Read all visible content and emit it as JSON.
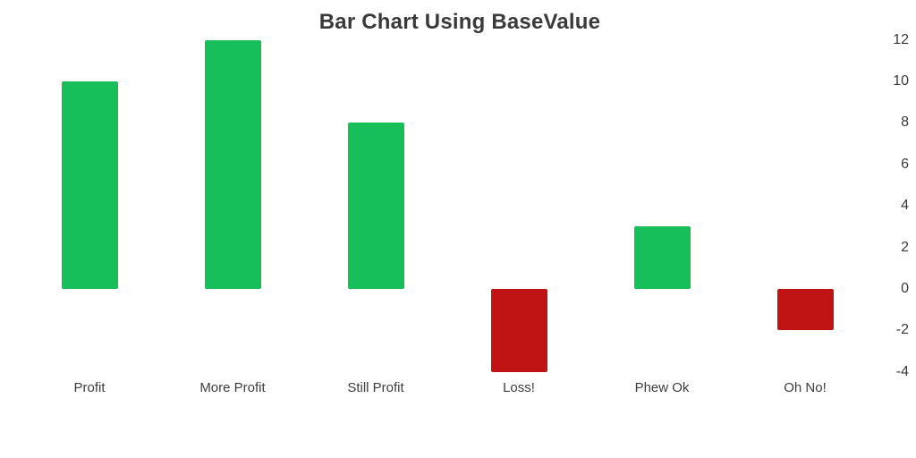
{
  "chart_data": {
    "type": "bar",
    "title": "Bar Chart Using BaseValue",
    "categories": [
      "Profit",
      "More Profit",
      "Still Profit",
      "Loss!",
      "Phew Ok",
      "Oh No!"
    ],
    "values": [
      10,
      12,
      8,
      -4,
      3,
      -2
    ],
    "base_value": 0,
    "xlabel": "",
    "ylabel": "",
    "ylim": [
      -4,
      12
    ],
    "y_ticks": [
      12,
      10,
      8,
      6,
      4,
      2,
      0,
      -2,
      -4
    ],
    "y_axis_side": "right",
    "grid": false,
    "legend": "none",
    "colors": {
      "positive_bar": "#17BF5B",
      "negative_bar": "#C01414",
      "title_text": "#3A3A3A",
      "label_text": "#3D3D3D",
      "background": "#FFFFFF"
    }
  }
}
